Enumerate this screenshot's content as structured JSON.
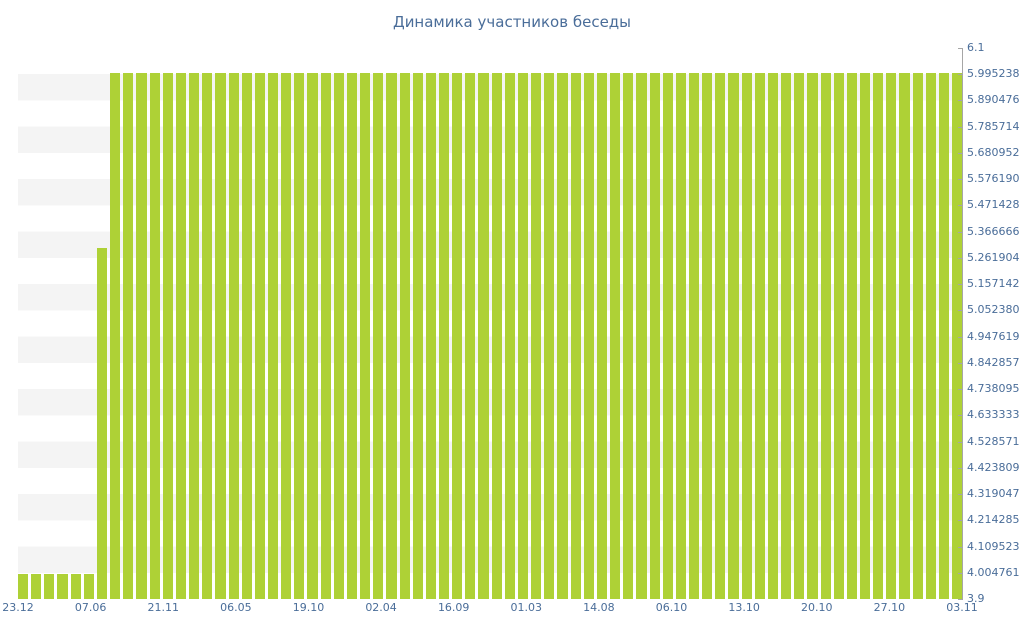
{
  "colors": {
    "bar": "#aed136",
    "text": "#4a6d99",
    "axis": "#a6a6a6",
    "stripe": "#f4f4f4",
    "background": "#ffffff"
  },
  "chart_data": {
    "type": "bar",
    "title": "Динамика участников беседы",
    "x_tick_labels": [
      "23.12",
      "07.06",
      "21.11",
      "06.05",
      "19.10",
      "02.04",
      "16.09",
      "01.03",
      "14.08",
      "06.10",
      "13.10",
      "20.10",
      "27.10",
      "03.11"
    ],
    "y_tick_labels": [
      "6.1",
      "5.995238",
      "5.890476",
      "5.785714",
      "5.680952",
      "5.576190",
      "5.471428",
      "5.366666",
      "5.261904",
      "5.157142",
      "5.052380",
      "4.947619",
      "4.842857",
      "4.738095",
      "4.633333",
      "4.528571",
      "4.423809",
      "4.319047",
      "4.214285",
      "4.109523",
      "4.004761",
      "3.9"
    ],
    "ylim": [
      3.9,
      6.1
    ],
    "y_axis_position": "right",
    "xlabel": "",
    "ylabel": "",
    "grid": "alternating-horizontal-bands",
    "legend": null,
    "values": [
      4,
      4,
      4,
      4,
      4,
      4,
      5.3,
      6,
      6,
      6,
      6,
      6,
      6,
      6,
      6,
      6,
      6,
      6,
      6,
      6,
      6,
      6,
      6,
      6,
      6,
      6,
      6,
      6,
      6,
      6,
      6,
      6,
      6,
      6,
      6,
      6,
      6,
      6,
      6,
      6,
      6,
      6,
      6,
      6,
      6,
      6,
      6,
      6,
      6,
      6,
      6,
      6,
      6,
      6,
      6,
      6,
      6,
      6,
      6,
      6,
      6,
      6,
      6,
      6,
      6,
      6,
      6,
      6,
      6,
      6,
      6,
      6
    ]
  }
}
